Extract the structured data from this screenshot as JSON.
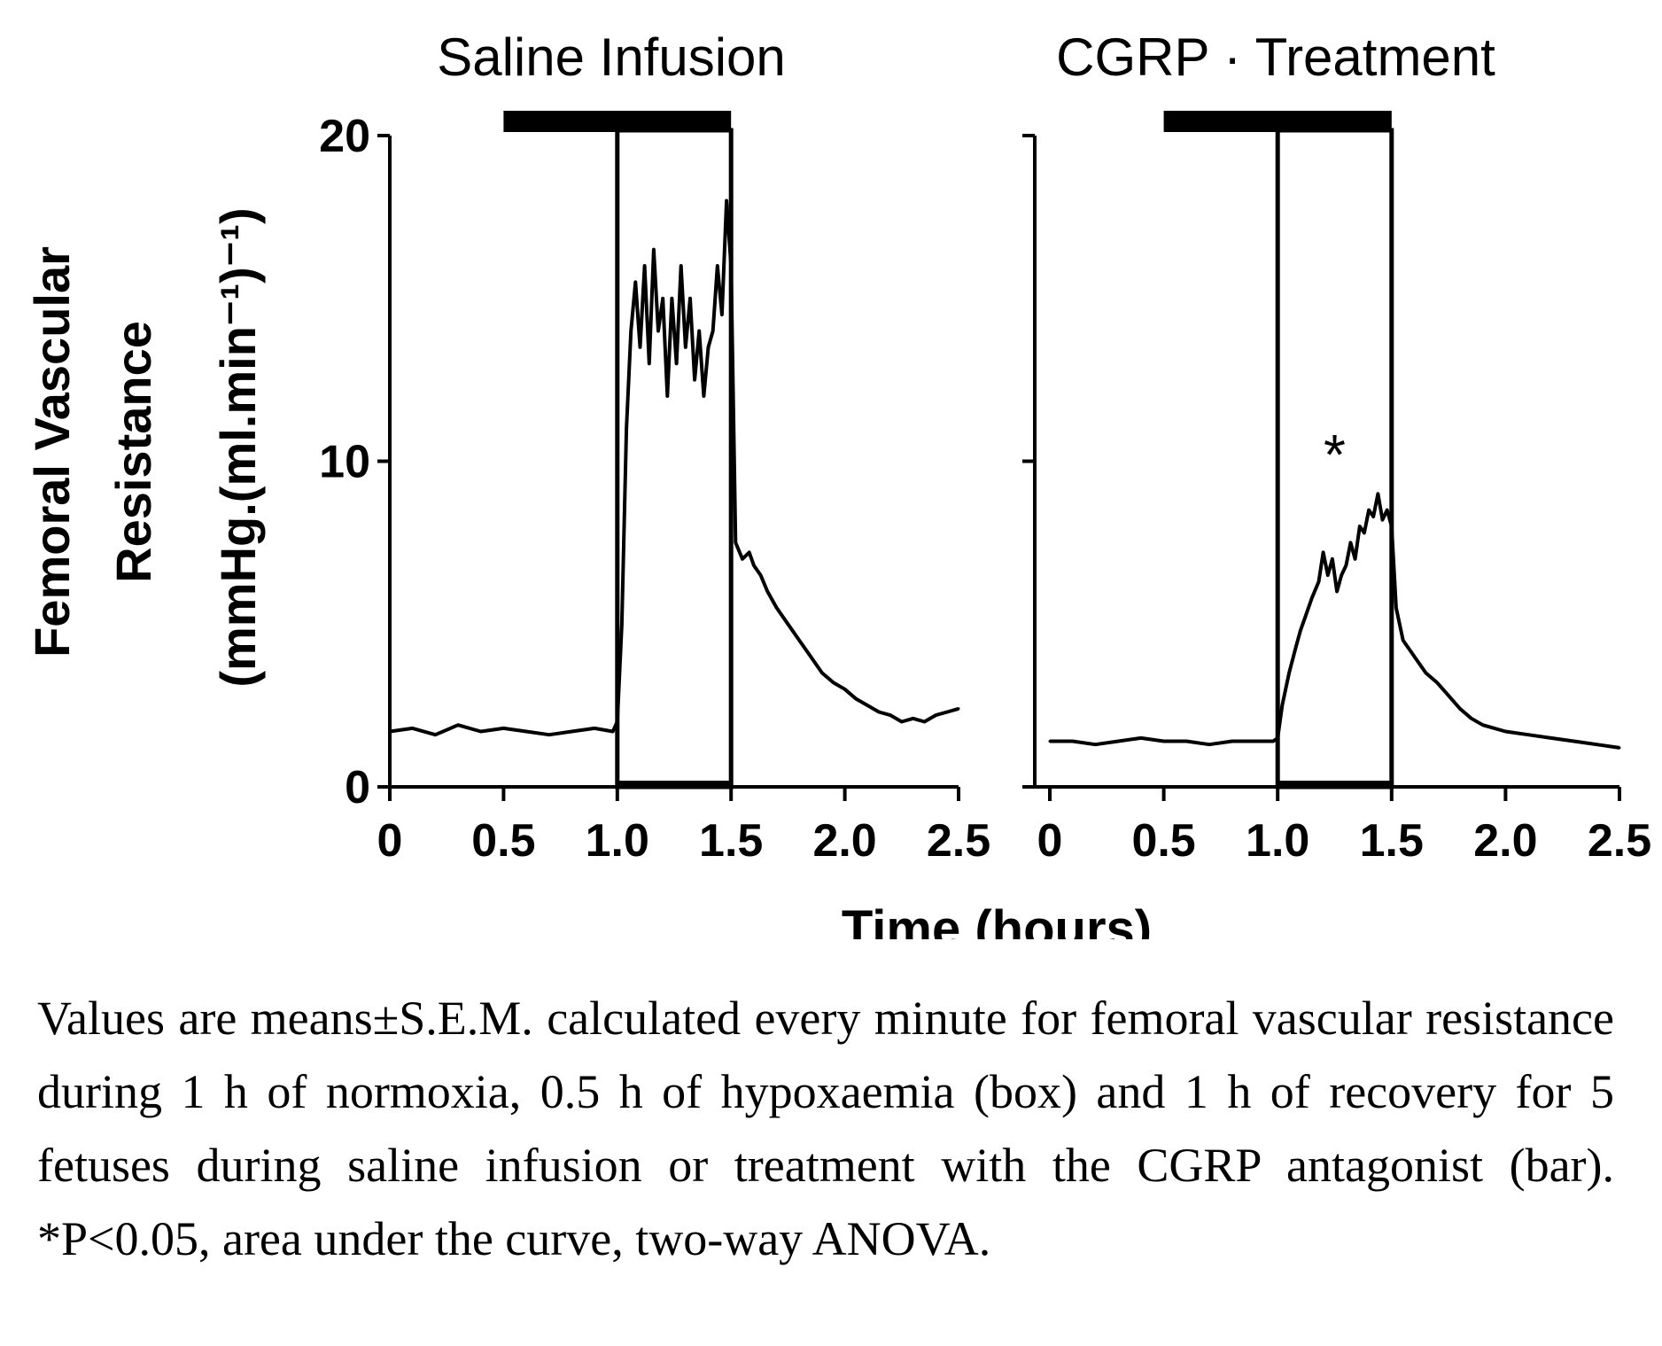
{
  "chart_data": [
    {
      "type": "line",
      "title": "Saline Infusion",
      "xlabel": "Time (hours)",
      "ylabel_line1": "Femoral Vascular",
      "ylabel_line2": "Resistance",
      "ylabel_line3": "(mmHg.(ml.min⁻¹)⁻¹)",
      "xlim": [
        0,
        2.5
      ],
      "ylim": [
        0,
        20
      ],
      "x_ticks": [
        0,
        0.5,
        1.0,
        1.5,
        2.0,
        2.5
      ],
      "x_tick_labels": [
        "0",
        "0.5",
        "1.0",
        "1.5",
        "2.0",
        "2.5"
      ],
      "y_ticks": [
        0,
        10,
        20
      ],
      "y_tick_labels": [
        "0",
        "10",
        "20"
      ],
      "treatment_bar": [
        0.5,
        1.5
      ],
      "hypoxaemia_box": [
        1.0,
        1.5
      ],
      "series": [
        {
          "x": [
            0,
            0.1,
            0.2,
            0.3,
            0.4,
            0.5,
            0.6,
            0.7,
            0.8,
            0.9,
            0.98,
            1.0,
            1.02,
            1.04,
            1.06,
            1.08,
            1.1,
            1.12,
            1.14,
            1.16,
            1.18,
            1.2,
            1.22,
            1.24,
            1.26,
            1.28,
            1.3,
            1.32,
            1.34,
            1.36,
            1.38,
            1.4,
            1.42,
            1.44,
            1.46,
            1.48,
            1.5,
            1.52,
            1.55,
            1.58,
            1.6,
            1.63,
            1.66,
            1.7,
            1.75,
            1.8,
            1.85,
            1.9,
            1.95,
            2.0,
            2.05,
            2.1,
            2.15,
            2.2,
            2.25,
            2.3,
            2.35,
            2.4,
            2.45,
            2.5
          ],
          "y": [
            1.7,
            1.8,
            1.6,
            1.9,
            1.7,
            1.8,
            1.7,
            1.6,
            1.7,
            1.8,
            1.7,
            2.0,
            5.0,
            11.0,
            14.0,
            15.5,
            13.5,
            16.0,
            13.0,
            16.5,
            14.0,
            15.0,
            12.0,
            15.0,
            13.0,
            16.0,
            13.5,
            15.0,
            12.5,
            14.0,
            12.0,
            13.5,
            14.0,
            16.0,
            14.5,
            18.0,
            16.0,
            7.5,
            7.0,
            7.2,
            6.8,
            6.5,
            6.0,
            5.5,
            5.0,
            4.5,
            4.0,
            3.5,
            3.2,
            3.0,
            2.7,
            2.5,
            2.3,
            2.2,
            2.0,
            2.1,
            2.0,
            2.2,
            2.3,
            2.4
          ]
        }
      ]
    },
    {
      "type": "line",
      "title": "CGRP · Treatment",
      "xlabel": "Time (hours)",
      "xlim": [
        0,
        2.5
      ],
      "ylim": [
        0,
        20
      ],
      "x_ticks": [
        0,
        0.5,
        1.0,
        1.5,
        2.0,
        2.5
      ],
      "x_tick_labels": [
        "0",
        "0.5",
        "1.0",
        "1.5",
        "2.0",
        "2.5"
      ],
      "y_ticks": [
        0,
        10,
        20
      ],
      "treatment_bar": [
        0.5,
        1.5
      ],
      "hypoxaemia_box": [
        1.0,
        1.5
      ],
      "annotation": "*",
      "annotation_x": 1.25,
      "series": [
        {
          "x": [
            0,
            0.1,
            0.2,
            0.3,
            0.4,
            0.5,
            0.6,
            0.7,
            0.8,
            0.9,
            0.98,
            1.0,
            1.02,
            1.05,
            1.08,
            1.1,
            1.12,
            1.15,
            1.18,
            1.2,
            1.22,
            1.24,
            1.26,
            1.28,
            1.3,
            1.32,
            1.34,
            1.36,
            1.38,
            1.4,
            1.42,
            1.44,
            1.46,
            1.48,
            1.5,
            1.52,
            1.55,
            1.58,
            1.6,
            1.65,
            1.7,
            1.75,
            1.8,
            1.85,
            1.9,
            2.0,
            2.1,
            2.2,
            2.3,
            2.4,
            2.5
          ],
          "y": [
            1.4,
            1.4,
            1.3,
            1.4,
            1.5,
            1.4,
            1.4,
            1.3,
            1.4,
            1.4,
            1.4,
            1.5,
            2.5,
            3.5,
            4.3,
            4.8,
            5.2,
            5.8,
            6.3,
            7.2,
            6.5,
            7.0,
            6.0,
            6.5,
            6.8,
            7.5,
            7.0,
            8.0,
            7.8,
            8.5,
            8.3,
            9.0,
            8.2,
            8.5,
            8.0,
            5.5,
            4.5,
            4.2,
            4.0,
            3.5,
            3.2,
            2.8,
            2.4,
            2.1,
            1.9,
            1.7,
            1.6,
            1.5,
            1.4,
            1.3,
            1.2
          ]
        }
      ]
    }
  ],
  "caption": "Values are means±S.E.M. calculated every minute for femoral vascular resistance during 1 h of normoxia, 0.5 h of hypoxaemia (box) and 1 h of recovery for 5 fetuses during saline infusion or treatment with the CGRP antagonist (bar). *P<0.05, area under the curve, two-way ANOVA."
}
